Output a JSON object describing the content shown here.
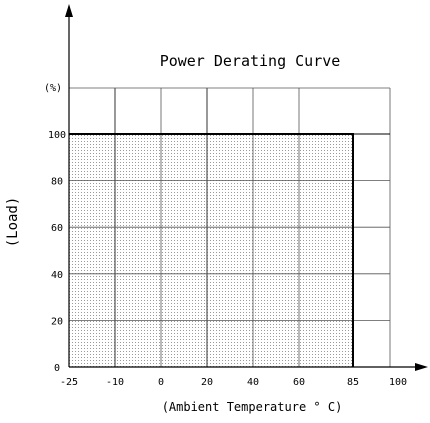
{
  "chart_data": {
    "type": "area",
    "title": "Power Derating Curve",
    "xlabel": "(Ambient Temperature ° C)",
    "ylabel": "(Load)",
    "y_unit": "(%)",
    "x_ticks": [
      -25,
      -10,
      0,
      20,
      40,
      60,
      85,
      100
    ],
    "x_tick_labels": [
      "-25",
      "-10",
      "0",
      "20",
      "40",
      "60",
      "85",
      "100"
    ],
    "y_ticks": [
      0,
      20,
      40,
      60,
      80,
      100
    ],
    "y_tick_labels": [
      "0",
      "20",
      "40",
      "60",
      "80",
      "100"
    ],
    "xlim": [
      -25,
      100
    ],
    "ylim": [
      0,
      120
    ],
    "grid": true,
    "series": [
      {
        "x": [
          -25,
          85,
          85
        ],
        "y": [
          100,
          100,
          0
        ]
      }
    ]
  }
}
